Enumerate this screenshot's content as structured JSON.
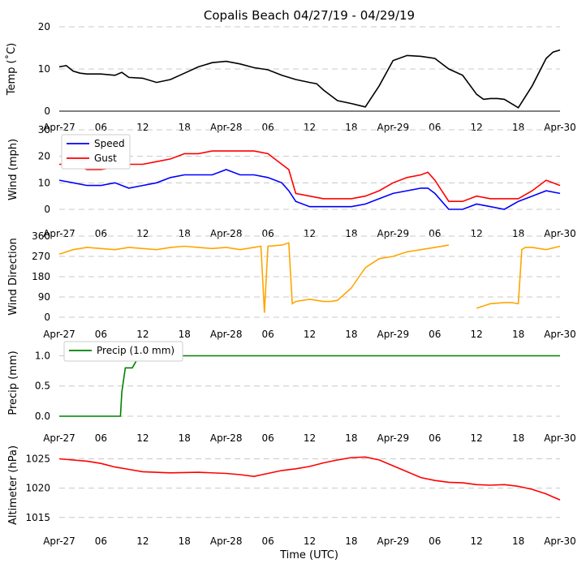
{
  "title": "Copalis Beach 04/27/19 - 04/29/19",
  "x_axis": {
    "label": "Time (UTC)",
    "tick_labels": [
      "Apr-27",
      "06",
      "12",
      "18",
      "Apr-28",
      "06",
      "12",
      "18",
      "Apr-29",
      "06",
      "12",
      "18",
      "Apr-30"
    ],
    "range_hours": [
      0,
      72
    ]
  },
  "colors": {
    "temp": "#000000",
    "speed": "#0000ff",
    "gust": "#ff0000",
    "direction": "#ffa500",
    "precip": "#008000",
    "altimeter": "#ff0000",
    "grid": "#c8c8c8"
  },
  "chart_data": [
    {
      "type": "line",
      "title": "Copalis Beach 04/27/19 - 04/29/19",
      "ylabel": "Temp ($^\\circ$C)",
      "ylabel_text": "Temp (˚C)",
      "ylim": [
        0,
        20
      ],
      "yticks": [
        0,
        10,
        20
      ],
      "x": [
        0,
        1,
        2,
        3,
        4,
        6,
        8,
        9,
        10,
        12,
        14,
        16,
        18,
        20,
        22,
        24,
        26,
        28,
        30,
        32,
        34,
        36,
        37,
        38,
        40,
        42,
        44,
        46,
        48,
        50,
        52,
        54,
        56,
        58,
        60,
        61,
        62,
        63,
        64,
        66,
        68,
        70,
        71,
        72
      ],
      "series": [
        {
          "name": "Temp",
          "values": [
            10.5,
            10.8,
            9.5,
            9.0,
            8.8,
            8.8,
            8.5,
            9.2,
            8.0,
            7.8,
            6.8,
            7.5,
            9.0,
            10.5,
            11.5,
            11.8,
            11.2,
            10.3,
            9.8,
            8.5,
            7.5,
            6.8,
            6.5,
            5.0,
            2.5,
            1.8,
            1.0,
            6.0,
            12.0,
            13.2,
            13.0,
            12.5,
            10.0,
            8.5,
            4.0,
            2.8,
            3.0,
            3.0,
            2.8,
            0.8,
            6.0,
            12.5,
            14.0,
            14.5
          ]
        }
      ]
    },
    {
      "type": "line",
      "ylabel": "Wind (mph)",
      "ylim": [
        0,
        30
      ],
      "yticks": [
        0,
        10,
        20,
        30
      ],
      "legend": "top-left",
      "x": [
        0,
        2,
        4,
        6,
        8,
        10,
        12,
        14,
        16,
        18,
        20,
        22,
        24,
        26,
        28,
        30,
        32,
        33,
        34,
        36,
        38,
        40,
        42,
        44,
        46,
        48,
        50,
        52,
        53,
        54,
        56,
        58,
        60,
        62,
        64,
        66,
        68,
        70,
        72
      ],
      "series": [
        {
          "name": "Speed",
          "values": [
            11,
            10,
            9,
            9,
            10,
            8,
            9,
            10,
            12,
            13,
            13,
            13,
            15,
            13,
            13,
            12,
            10,
            7,
            3,
            1,
            1,
            1,
            1,
            2,
            4,
            6,
            7,
            8,
            8,
            6,
            0,
            0,
            2,
            1,
            0,
            3,
            5,
            7,
            6
          ]
        },
        {
          "name": "Gust",
          "values": [
            17,
            17,
            15,
            15,
            16,
            17,
            17,
            18,
            19,
            21,
            21,
            22,
            22,
            22,
            22,
            21,
            17,
            15,
            6,
            5,
            4,
            4,
            4,
            5,
            7,
            10,
            12,
            13,
            14,
            11,
            3,
            3,
            5,
            4,
            4,
            4,
            7,
            11,
            9
          ]
        }
      ]
    },
    {
      "type": "line",
      "ylabel": "Wind Direction",
      "ylim": [
        0,
        360
      ],
      "yticks": [
        0,
        90,
        180,
        270,
        360
      ],
      "x": [
        0,
        2,
        4,
        6,
        8,
        10,
        12,
        14,
        16,
        18,
        20,
        22,
        24,
        26,
        28,
        29,
        29.5,
        30,
        32,
        33,
        33.5,
        34,
        36,
        38,
        39,
        40,
        42,
        44,
        46,
        48,
        50,
        52,
        54,
        56,
        58,
        60,
        62,
        64,
        65,
        66,
        66.5,
        67,
        68,
        70,
        72
      ],
      "series": [
        {
          "name": "Direction",
          "values": [
            280,
            300,
            310,
            305,
            300,
            310,
            305,
            300,
            310,
            315,
            310,
            305,
            310,
            300,
            310,
            315,
            20,
            315,
            320,
            330,
            60,
            70,
            80,
            70,
            70,
            75,
            130,
            220,
            260,
            270,
            290,
            300,
            310,
            320,
            null,
            40,
            60,
            65,
            65,
            60,
            300,
            310,
            310,
            300,
            315
          ]
        }
      ]
    },
    {
      "type": "line",
      "ylabel": "Precip (mm)",
      "ylim": [
        0,
        1.1
      ],
      "yticks": [
        "0.0",
        "0.5",
        "1.0"
      ],
      "legend": "top-left",
      "x": [
        0,
        8.8,
        9.0,
        9.5,
        10.0,
        10.5,
        11.5,
        72
      ],
      "series": [
        {
          "name": "Precip (1.0 mm)",
          "values": [
            0,
            0,
            0.4,
            0.8,
            0.8,
            0.8,
            1.0,
            1.0
          ]
        }
      ]
    },
    {
      "type": "line",
      "ylabel": "Altimeter (hPa)",
      "ylim": [
        1014,
        1027
      ],
      "yticks": [
        1015,
        1020,
        1025
      ],
      "x": [
        0,
        4,
        6,
        8,
        10,
        12,
        16,
        20,
        24,
        26,
        28,
        30,
        32,
        34,
        36,
        38,
        40,
        42,
        44,
        46,
        48,
        50,
        52,
        54,
        56,
        58,
        60,
        62,
        64,
        66,
        68,
        70,
        71,
        72
      ],
      "series": [
        {
          "name": "Altimeter",
          "values": [
            1025,
            1024.6,
            1024.2,
            1023.6,
            1023.2,
            1022.8,
            1022.6,
            1022.7,
            1022.5,
            1022.3,
            1022,
            1022.5,
            1023,
            1023.3,
            1023.7,
            1024.3,
            1024.8,
            1025.2,
            1025.3,
            1024.8,
            1023.8,
            1022.8,
            1021.8,
            1021.3,
            1021,
            1020.9,
            1020.6,
            1020.5,
            1020.6,
            1020.3,
            1019.8,
            1019,
            1018.5,
            1018
          ]
        }
      ]
    }
  ]
}
